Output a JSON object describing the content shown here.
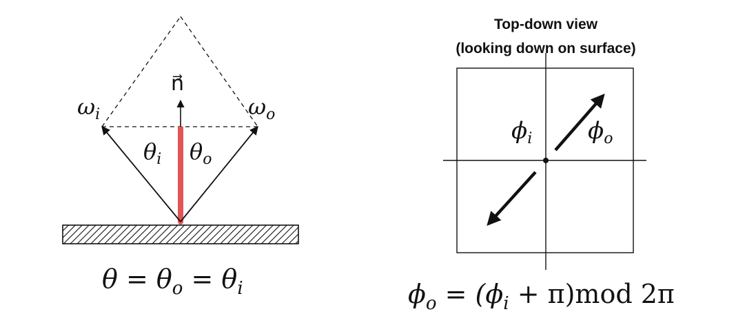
{
  "left_figure": {
    "normal_label": "n⃗",
    "incoming_label": "ω",
    "incoming_subscript": "i",
    "outgoing_label": "ω",
    "outgoing_subscript": "o",
    "theta_i_label": "θ",
    "theta_i_subscript": "i",
    "theta_o_label": "θ",
    "theta_o_subscript": "o",
    "equation": {
      "part1": "θ = θ",
      "sub1": "o",
      "part2": " = θ",
      "sub2": "i"
    },
    "colors": {
      "normal_highlight": "#e05555",
      "line": "#111111"
    }
  },
  "right_figure": {
    "title_line1": "Top-down view",
    "title_line2": "(looking down on surface)",
    "phi_i_label": "ϕ",
    "phi_i_subscript": "i",
    "phi_o_label": "ϕ",
    "phi_o_subscript": "o",
    "equation": {
      "p1": "ϕ",
      "s1": "o",
      "p2": " = (ϕ",
      "s2": "i",
      "p3": " + π)mod 2π"
    }
  }
}
